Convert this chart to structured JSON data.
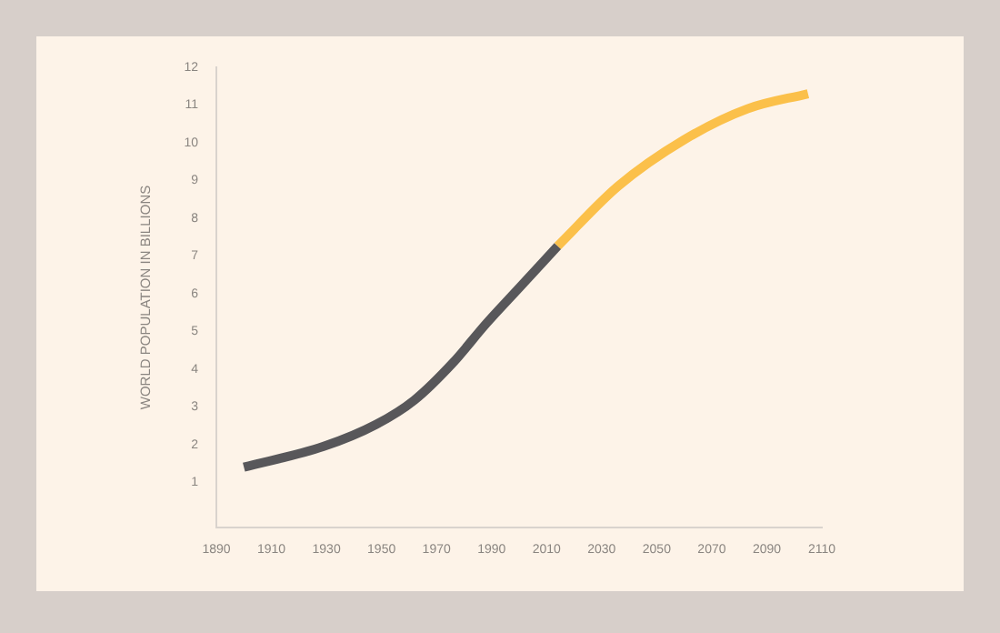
{
  "chart_data": {
    "type": "line",
    "ylabel": "WORLD POPULATION IN BILLIONS",
    "xlim": [
      1890,
      2110
    ],
    "xticks": [
      1890,
      1910,
      1930,
      1950,
      1970,
      1990,
      2010,
      2030,
      2050,
      2070,
      2090,
      2110
    ],
    "ylim": [
      -0.2,
      12
    ],
    "yticks": [
      1,
      2,
      3,
      4,
      5,
      6,
      7,
      8,
      9,
      10,
      11,
      12
    ],
    "grid": false,
    "legend": false,
    "marker": "none",
    "line_style": "solid",
    "series": [
      {
        "color": "#58575a",
        "x": [
          1900,
          1929,
          1948,
          1962,
          1976,
          1988,
          2000,
          2014
        ],
        "values": [
          1.4,
          1.95,
          2.53,
          3.18,
          4.17,
          5.2,
          6.15,
          7.26
        ]
      },
      {
        "color": "#fbc04a",
        "x": [
          2014,
          2036,
          2060,
          2083,
          2105
        ],
        "values": [
          7.26,
          8.85,
          10.08,
          10.9,
          11.3
        ]
      }
    ]
  }
}
